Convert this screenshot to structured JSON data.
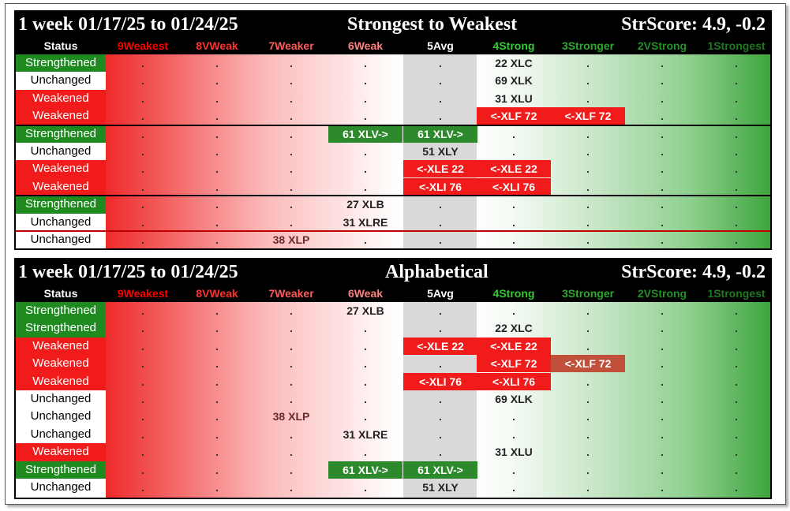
{
  "columns": [
    "Status",
    "9Weakest",
    "8VWeak",
    "7Weaker",
    "6Weak",
    "5Avg",
    "4Strong",
    "3Stronger",
    "2VStrong",
    "1Strongest"
  ],
  "column_colors": [
    "#ffffff",
    "#ff0000",
    "#ff3030",
    "#ff5a5a",
    "#ff8080",
    "#ffffff",
    "#33cc33",
    "#2ea82e",
    "#268f26",
    "#1f7a1f"
  ],
  "panels": [
    {
      "title_left": "1 week 01/17/25 to 01/24/25",
      "title_center": "Strongest to Weakest",
      "title_right": "StrScore: 4.9, -0.2",
      "rows": [
        {
          "status": "Strengthened",
          "marks": [
            {
              "col": 6,
              "text": "22 XLC",
              "style": "plain"
            }
          ]
        },
        {
          "status": "Unchanged",
          "marks": [
            {
              "col": 6,
              "text": "69 XLK",
              "style": "plain"
            }
          ]
        },
        {
          "status": "Weakened",
          "marks": [
            {
              "col": 6,
              "text": "31 XLU",
              "style": "plain"
            }
          ]
        },
        {
          "status": "Weakened",
          "marks": [
            {
              "col": 6,
              "text": "<-XLF 72",
              "style": "red"
            },
            {
              "col": 7,
              "text": "<-XLF 72",
              "style": "red"
            }
          ]
        },
        {
          "status": "Strengthened",
          "marks": [
            {
              "col": 4,
              "text": "61 XLV->",
              "style": "green"
            },
            {
              "col": 5,
              "text": "61 XLV->",
              "style": "green"
            }
          ]
        },
        {
          "status": "Unchanged",
          "marks": [
            {
              "col": 5,
              "text": "51 XLY",
              "style": "plain"
            }
          ]
        },
        {
          "status": "Weakened",
          "marks": [
            {
              "col": 5,
              "text": "<-XLE 22",
              "style": "red"
            },
            {
              "col": 6,
              "text": "<-XLE 22",
              "style": "red"
            }
          ]
        },
        {
          "status": "Weakened",
          "marks": [
            {
              "col": 5,
              "text": "<-XLI 76",
              "style": "red"
            },
            {
              "col": 6,
              "text": "<-XLI 76",
              "style": "red"
            }
          ]
        },
        {
          "status": "Strengthened",
          "marks": [
            {
              "col": 4,
              "text": "27 XLB",
              "style": "plain"
            }
          ]
        },
        {
          "status": "Unchanged",
          "marks": [
            {
              "col": 4,
              "text": "31 XLRE",
              "style": "plain"
            }
          ]
        },
        {
          "status": "Unchanged",
          "marks": [
            {
              "col": 3,
              "text": "38 XLP",
              "style": "plain"
            }
          ]
        }
      ],
      "separators": [
        {
          "after": 3,
          "color": "black"
        },
        {
          "after": 7,
          "color": "black"
        },
        {
          "after": 9,
          "color": "red"
        }
      ]
    },
    {
      "title_left": "1 week 01/17/25 to 01/24/25",
      "title_center": "Alphabetical",
      "title_right": "StrScore: 4.9, -0.2",
      "rows": [
        {
          "status": "Strengthened",
          "marks": [
            {
              "col": 4,
              "text": "27 XLB",
              "style": "plain"
            }
          ]
        },
        {
          "status": "Strengthened",
          "marks": [
            {
              "col": 6,
              "text": "22 XLC",
              "style": "plain"
            }
          ]
        },
        {
          "status": "Weakened",
          "marks": [
            {
              "col": 5,
              "text": "<-XLE 22",
              "style": "red"
            },
            {
              "col": 6,
              "text": "<-XLE 22",
              "style": "red"
            }
          ]
        },
        {
          "status": "Weakened",
          "marks": [
            {
              "col": 6,
              "text": "<-XLF 72",
              "style": "red"
            },
            {
              "col": 7,
              "text": "<-XLF 72",
              "style": "red"
            }
          ]
        },
        {
          "status": "Weakened",
          "marks": [
            {
              "col": 5,
              "text": "<-XLI 76",
              "style": "red"
            },
            {
              "col": 6,
              "text": "<-XLI 76",
              "style": "red"
            }
          ]
        },
        {
          "status": "Unchanged",
          "marks": [
            {
              "col": 6,
              "text": "69 XLK",
              "style": "plain"
            }
          ]
        },
        {
          "status": "Unchanged",
          "marks": [
            {
              "col": 3,
              "text": "38 XLP",
              "style": "plain"
            }
          ]
        },
        {
          "status": "Unchanged",
          "marks": [
            {
              "col": 4,
              "text": "31 XLRE",
              "style": "plain"
            }
          ]
        },
        {
          "status": "Weakened",
          "marks": [
            {
              "col": 6,
              "text": "31 XLU",
              "style": "plain"
            }
          ]
        },
        {
          "status": "Strengthened",
          "marks": [
            {
              "col": 4,
              "text": "61 XLV->",
              "style": "green"
            },
            {
              "col": 5,
              "text": "61 XLV->",
              "style": "green"
            }
          ]
        },
        {
          "status": "Unchanged",
          "marks": [
            {
              "col": 5,
              "text": "51 XLY",
              "style": "plain"
            }
          ]
        }
      ],
      "separators": []
    }
  ],
  "chart_data": {
    "type": "table",
    "title": "1 week 01/17/25 to 01/24/25",
    "columns": [
      "Status",
      "9Weakest",
      "8VWeak",
      "7Weaker",
      "6Weak",
      "5Avg",
      "4Strong",
      "3Stronger",
      "2VStrong",
      "1Strongest"
    ],
    "tables": [
      {
        "ordering": "Strongest to Weakest",
        "strscore": "StrScore: 4.9, -0.2",
        "rows": [
          {
            "status": "Strengthened",
            "ticker": "XLC",
            "score": 22,
            "from": "4Strong",
            "to": "4Strong"
          },
          {
            "status": "Unchanged",
            "ticker": "XLK",
            "score": 69,
            "from": "4Strong",
            "to": "4Strong"
          },
          {
            "status": "Weakened",
            "ticker": "XLU",
            "score": 31,
            "from": "4Strong",
            "to": "4Strong"
          },
          {
            "status": "Weakened",
            "ticker": "XLF",
            "score": 72,
            "from": "3Stronger",
            "to": "4Strong"
          },
          {
            "status": "Strengthened",
            "ticker": "XLV",
            "score": 61,
            "from": "6Weak",
            "to": "5Avg"
          },
          {
            "status": "Unchanged",
            "ticker": "XLY",
            "score": 51,
            "from": "5Avg",
            "to": "5Avg"
          },
          {
            "status": "Weakened",
            "ticker": "XLE",
            "score": 22,
            "from": "4Strong",
            "to": "5Avg"
          },
          {
            "status": "Weakened",
            "ticker": "XLI",
            "score": 76,
            "from": "4Strong",
            "to": "5Avg"
          },
          {
            "status": "Strengthened",
            "ticker": "XLB",
            "score": 27,
            "from": "6Weak",
            "to": "6Weak"
          },
          {
            "status": "Unchanged",
            "ticker": "XLRE",
            "score": 31,
            "from": "6Weak",
            "to": "6Weak"
          },
          {
            "status": "Unchanged",
            "ticker": "XLP",
            "score": 38,
            "from": "7Weaker",
            "to": "7Weaker"
          }
        ]
      },
      {
        "ordering": "Alphabetical",
        "strscore": "StrScore: 4.9, -0.2",
        "rows": [
          {
            "status": "Strengthened",
            "ticker": "XLB",
            "score": 27
          },
          {
            "status": "Strengthened",
            "ticker": "XLC",
            "score": 22
          },
          {
            "status": "Weakened",
            "ticker": "XLE",
            "score": 22
          },
          {
            "status": "Weakened",
            "ticker": "XLF",
            "score": 72
          },
          {
            "status": "Weakened",
            "ticker": "XLI",
            "score": 76
          },
          {
            "status": "Unchanged",
            "ticker": "XLK",
            "score": 69
          },
          {
            "status": "Unchanged",
            "ticker": "XLP",
            "score": 38
          },
          {
            "status": "Unchanged",
            "ticker": "XLRE",
            "score": 31
          },
          {
            "status": "Weakened",
            "ticker": "XLU",
            "score": 31
          },
          {
            "status": "Strengthened",
            "ticker": "XLV",
            "score": 61
          },
          {
            "status": "Unchanged",
            "ticker": "XLY",
            "score": 51
          }
        ]
      }
    ]
  }
}
